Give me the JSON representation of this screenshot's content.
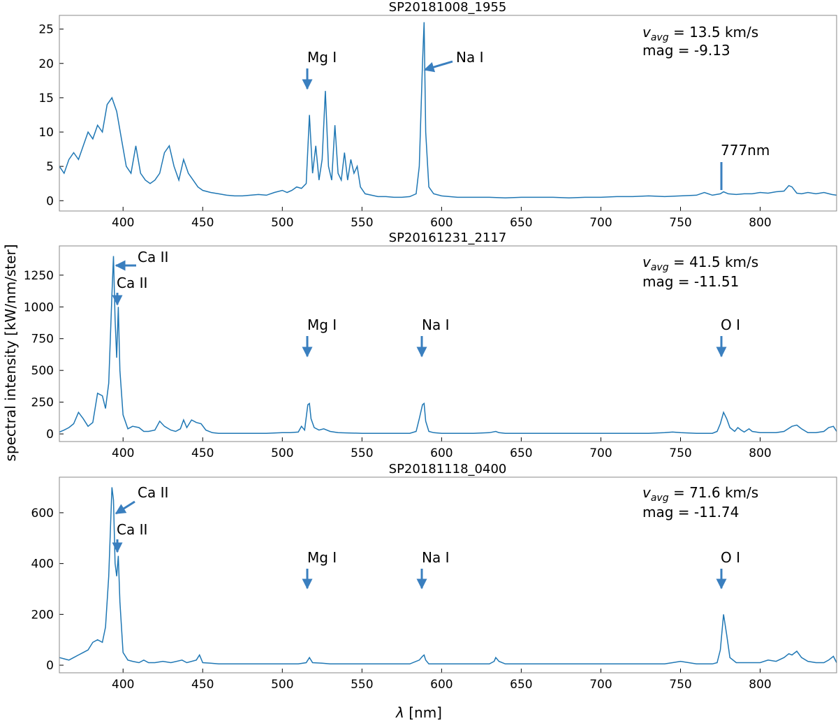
{
  "figure": {
    "ylabel": "spectral intensity [kW/nm/ster]",
    "xlabel_symbol": "λ",
    "xlabel_unit": " [nm]"
  },
  "colors": {
    "line": "#1f77b4",
    "arrow": "#3a7fbf",
    "frame": "#888888"
  },
  "chart_data": [
    {
      "type": "line",
      "title": "SP20181008_1955",
      "xlim": [
        360,
        848
      ],
      "ylim": [
        -1.5,
        27
      ],
      "x_ticks": [
        400,
        450,
        500,
        550,
        600,
        650,
        700,
        750,
        800
      ],
      "y_ticks": [
        0,
        5,
        10,
        15,
        20,
        25
      ],
      "info": {
        "v_label": "v",
        "v_sub": "avg",
        "v_value": " = 13.5 km/s",
        "mag": "mag = -9.13"
      },
      "series": [
        {
          "x": [
            360,
            363,
            366,
            369,
            372,
            375,
            378,
            381,
            384,
            387,
            390,
            393,
            396,
            399,
            402,
            405,
            408,
            411,
            414,
            417,
            420,
            423,
            426,
            429,
            432,
            435,
            438,
            441,
            444,
            447,
            450,
            455,
            460,
            465,
            470,
            475,
            480,
            485,
            490,
            495,
            500,
            503,
            506,
            509,
            512,
            515,
            517,
            519,
            521,
            523,
            525,
            527,
            529,
            531,
            533,
            535,
            537,
            539,
            541,
            543,
            545,
            547,
            549,
            552,
            556,
            560,
            565,
            570,
            575,
            580,
            584,
            586,
            588,
            589,
            590,
            592,
            595,
            600,
            610,
            620,
            630,
            640,
            650,
            660,
            670,
            680,
            690,
            700,
            710,
            720,
            730,
            740,
            750,
            760,
            765,
            770,
            775,
            777,
            780,
            785,
            790,
            795,
            800,
            805,
            810,
            815,
            818,
            820,
            823,
            826,
            830,
            835,
            840,
            845,
            848
          ],
          "y": [
            5,
            4,
            6,
            7,
            6,
            8,
            10,
            9,
            11,
            10,
            14,
            15,
            13,
            9,
            5,
            4,
            8,
            4,
            3,
            2.5,
            3,
            4,
            7,
            8,
            5,
            3,
            6,
            4,
            3,
            2,
            1.5,
            1.2,
            1,
            0.8,
            0.7,
            0.7,
            0.8,
            0.9,
            0.8,
            1.2,
            1.5,
            1.2,
            1.5,
            2,
            1.8,
            2.5,
            12.5,
            4,
            8,
            3,
            6,
            16,
            5,
            3,
            11,
            4,
            3,
            7,
            3,
            6,
            4,
            5,
            2,
            1,
            0.8,
            0.6,
            0.6,
            0.5,
            0.5,
            0.6,
            1,
            5,
            20,
            26,
            10,
            2,
            1,
            0.7,
            0.5,
            0.5,
            0.5,
            0.4,
            0.5,
            0.5,
            0.5,
            0.4,
            0.5,
            0.5,
            0.6,
            0.6,
            0.7,
            0.6,
            0.7,
            0.8,
            1.2,
            0.8,
            1,
            1.3,
            1,
            0.9,
            1,
            1,
            1.2,
            1.1,
            1.3,
            1.4,
            2.2,
            2,
            1.1,
            1,
            1.2,
            1,
            1.2,
            0.9,
            0.8
          ]
        }
      ]
    },
    {
      "type": "line",
      "title": "SP20161231_2117",
      "xlim": [
        360,
        848
      ],
      "ylim": [
        -60,
        1480
      ],
      "x_ticks": [
        400,
        450,
        500,
        550,
        600,
        650,
        700,
        750,
        800
      ],
      "y_ticks": [
        0,
        250,
        500,
        750,
        1000,
        1250
      ],
      "info": {
        "v_label": "v",
        "v_sub": "avg",
        "v_value": " = 41.5 km/s",
        "mag": "mag = -11.51"
      },
      "series": [
        {
          "x": [
            360,
            363,
            366,
            369,
            372,
            375,
            378,
            381,
            384,
            387,
            389,
            391,
            393,
            394,
            395,
            396,
            397,
            398,
            400,
            403,
            406,
            410,
            413,
            416,
            420,
            423,
            426,
            430,
            433,
            436,
            438,
            440,
            443,
            446,
            449,
            452,
            456,
            460,
            470,
            480,
            490,
            500,
            505,
            510,
            512,
            514,
            516,
            517,
            518,
            520,
            523,
            526,
            530,
            535,
            540,
            550,
            560,
            570,
            580,
            584,
            586,
            588,
            589,
            590,
            592,
            595,
            600,
            610,
            620,
            630,
            634,
            636,
            640,
            650,
            660,
            670,
            680,
            690,
            700,
            710,
            720,
            730,
            740,
            745,
            750,
            760,
            770,
            773,
            775,
            777,
            779,
            781,
            784,
            786,
            788,
            790,
            793,
            795,
            800,
            805,
            810,
            815,
            820,
            823,
            826,
            830,
            835,
            840,
            843,
            846,
            848
          ],
          "y": [
            15,
            30,
            50,
            80,
            170,
            120,
            60,
            90,
            320,
            300,
            200,
            400,
            1100,
            1400,
            900,
            600,
            1000,
            500,
            150,
            40,
            60,
            50,
            20,
            20,
            30,
            100,
            60,
            30,
            20,
            40,
            110,
            50,
            110,
            90,
            80,
            30,
            10,
            5,
            5,
            5,
            5,
            10,
            10,
            15,
            60,
            30,
            230,
            240,
            120,
            50,
            30,
            40,
            20,
            10,
            8,
            5,
            5,
            5,
            5,
            20,
            120,
            230,
            240,
            100,
            20,
            10,
            5,
            5,
            5,
            10,
            20,
            10,
            5,
            5,
            5,
            5,
            5,
            5,
            5,
            5,
            5,
            5,
            10,
            15,
            10,
            5,
            5,
            20,
            80,
            170,
            120,
            50,
            20,
            50,
            30,
            15,
            40,
            20,
            10,
            10,
            10,
            20,
            60,
            70,
            40,
            10,
            10,
            20,
            50,
            60,
            20
          ]
        }
      ]
    },
    {
      "type": "line",
      "title": "SP20181118_0400",
      "xlim": [
        360,
        848
      ],
      "ylim": [
        -30,
        740
      ],
      "x_ticks": [
        400,
        450,
        500,
        550,
        600,
        650,
        700,
        750,
        800
      ],
      "y_ticks": [
        0,
        200,
        400,
        600
      ],
      "info": {
        "v_label": "v",
        "v_sub": "avg",
        "v_value": " = 71.6 km/s",
        "mag": "mag = -11.74"
      },
      "series": [
        {
          "x": [
            360,
            363,
            366,
            369,
            372,
            375,
            378,
            381,
            384,
            387,
            389,
            391,
            393,
            394,
            395,
            396,
            397,
            398,
            400,
            403,
            406,
            410,
            413,
            416,
            420,
            425,
            430,
            437,
            440,
            446,
            448,
            450,
            455,
            460,
            470,
            480,
            490,
            500,
            510,
            515,
            517,
            519,
            525,
            530,
            540,
            550,
            560,
            570,
            580,
            586,
            588,
            589,
            590,
            592,
            600,
            610,
            620,
            630,
            633,
            634,
            636,
            640,
            650,
            660,
            670,
            680,
            690,
            700,
            710,
            720,
            730,
            740,
            745,
            750,
            760,
            770,
            773,
            775,
            777,
            779,
            781,
            785,
            790,
            795,
            800,
            805,
            810,
            815,
            818,
            820,
            823,
            826,
            830,
            835,
            840,
            843,
            846,
            848
          ],
          "y": [
            30,
            25,
            20,
            30,
            40,
            50,
            60,
            90,
            100,
            90,
            150,
            350,
            700,
            650,
            400,
            350,
            430,
            250,
            50,
            20,
            15,
            10,
            20,
            10,
            10,
            15,
            10,
            20,
            10,
            20,
            40,
            10,
            8,
            5,
            5,
            5,
            5,
            5,
            5,
            10,
            30,
            10,
            8,
            5,
            5,
            5,
            5,
            5,
            5,
            20,
            35,
            40,
            20,
            5,
            5,
            5,
            5,
            5,
            15,
            30,
            15,
            5,
            5,
            5,
            5,
            5,
            5,
            5,
            5,
            5,
            5,
            5,
            10,
            15,
            5,
            5,
            10,
            60,
            200,
            120,
            30,
            10,
            10,
            10,
            10,
            20,
            15,
            30,
            45,
            40,
            55,
            30,
            15,
            10,
            10,
            20,
            35,
            10
          ]
        }
      ]
    }
  ],
  "annotations": [
    [
      {
        "text": "Mg I"
      },
      {
        "text": "Na I"
      },
      {
        "text": "777nm"
      }
    ],
    [
      {
        "text": "Ca II"
      },
      {
        "text": "Ca II"
      },
      {
        "text": "Mg I"
      },
      {
        "text": "Na I"
      },
      {
        "text": "O I"
      }
    ],
    [
      {
        "text": "Ca II"
      },
      {
        "text": "Ca II"
      },
      {
        "text": "Mg I"
      },
      {
        "text": "Na I"
      },
      {
        "text": "O I"
      }
    ]
  ]
}
